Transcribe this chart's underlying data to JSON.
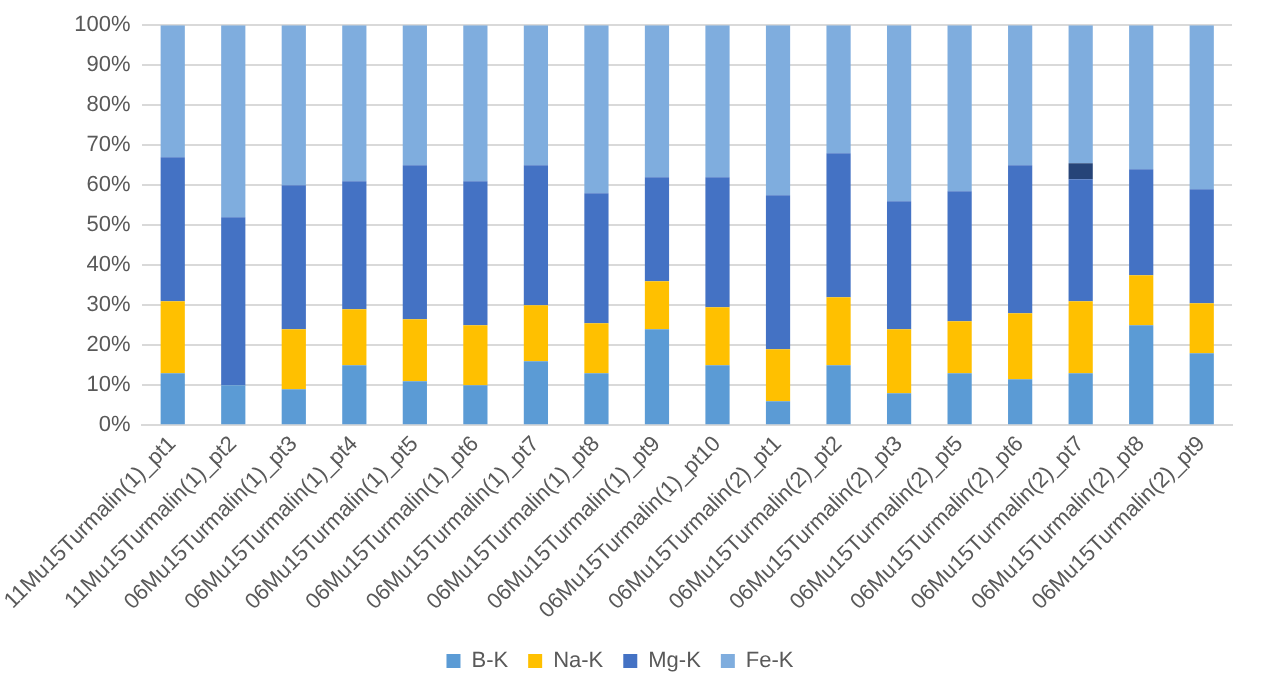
{
  "chart_data": {
    "type": "bar",
    "stacked": true,
    "categories": [
      "11Mu15Turmalin(1)_pt1",
      "11Mu15Turmalin(1)_pt2",
      "06Mu15Turmalin(1)_pt3",
      "06Mu15Turmalin(1)_pt4",
      "06Mu15Turmalin(1)_pt5",
      "06Mu15Turmalin(1)_pt6",
      "06Mu15Turmalin(1)_pt7",
      "06Mu15Turmalin(1)_pt8",
      "06Mu15Turmalin(1)_pt9",
      "06Mu15Turmalin(1)_pt10",
      "06Mu15Turmalin(2)_pt1",
      "06Mu15Turmalin(2)_pt2",
      "06Mu15Turmalin(2)_pt3",
      "06Mu15Turmalin(2)_pt5",
      "06Mu15Turmalin(2)_pt6",
      "06Mu15Turmalin(2)_pt7",
      "06Mu15Turmalin(2)_pt8",
      "06Mu15Turmalin(2)_pt9"
    ],
    "series": [
      {
        "name": "B-K",
        "color": "#5b9bd5",
        "values": [
          13,
          10,
          9,
          15,
          11,
          10,
          16,
          13,
          24,
          15,
          6,
          15,
          8,
          13,
          11.5,
          13,
          25,
          18
        ]
      },
      {
        "name": "Na-K",
        "color": "#ffc000",
        "values": [
          18,
          0,
          15,
          14,
          15.5,
          15,
          14,
          12.5,
          12,
          14.5,
          13,
          17,
          16,
          13,
          16.5,
          18,
          12.5,
          12.5
        ]
      },
      {
        "name": "Mg-K",
        "color": "#4472c4",
        "values": [
          36,
          42,
          36,
          32,
          38.5,
          36,
          35,
          32.5,
          26,
          32.5,
          38.5,
          36,
          32,
          32.5,
          37,
          30.5,
          26.5,
          28.5
        ]
      },
      {
        "color": "#264478",
        "values": [
          null,
          null,
          null,
          null,
          null,
          null,
          null,
          null,
          null,
          null,
          null,
          null,
          null,
          null,
          null,
          4,
          null,
          null
        ]
      },
      {
        "name": "Fe-K",
        "color": "#7fadde",
        "values": [
          33,
          48,
          40,
          39,
          35,
          39,
          35,
          42,
          38,
          38,
          42.5,
          32,
          44,
          41.5,
          35,
          34.5,
          36,
          41
        ]
      }
    ],
    "ylim": [
      0,
      100
    ],
    "yticks": [
      {
        "value": 0,
        "label": "0%"
      },
      {
        "value": 10,
        "label": "10%"
      },
      {
        "value": 20,
        "label": "20%"
      },
      {
        "value": 30,
        "label": "30%"
      },
      {
        "value": 40,
        "label": "40%"
      },
      {
        "value": 50,
        "label": "50%"
      },
      {
        "value": 60,
        "label": "60%"
      },
      {
        "value": 70,
        "label": "70%"
      },
      {
        "value": 80,
        "label": "80%"
      },
      {
        "value": 90,
        "label": "90%"
      },
      {
        "value": 100,
        "label": "100%"
      }
    ],
    "grid": "y",
    "legend": "bottom"
  }
}
